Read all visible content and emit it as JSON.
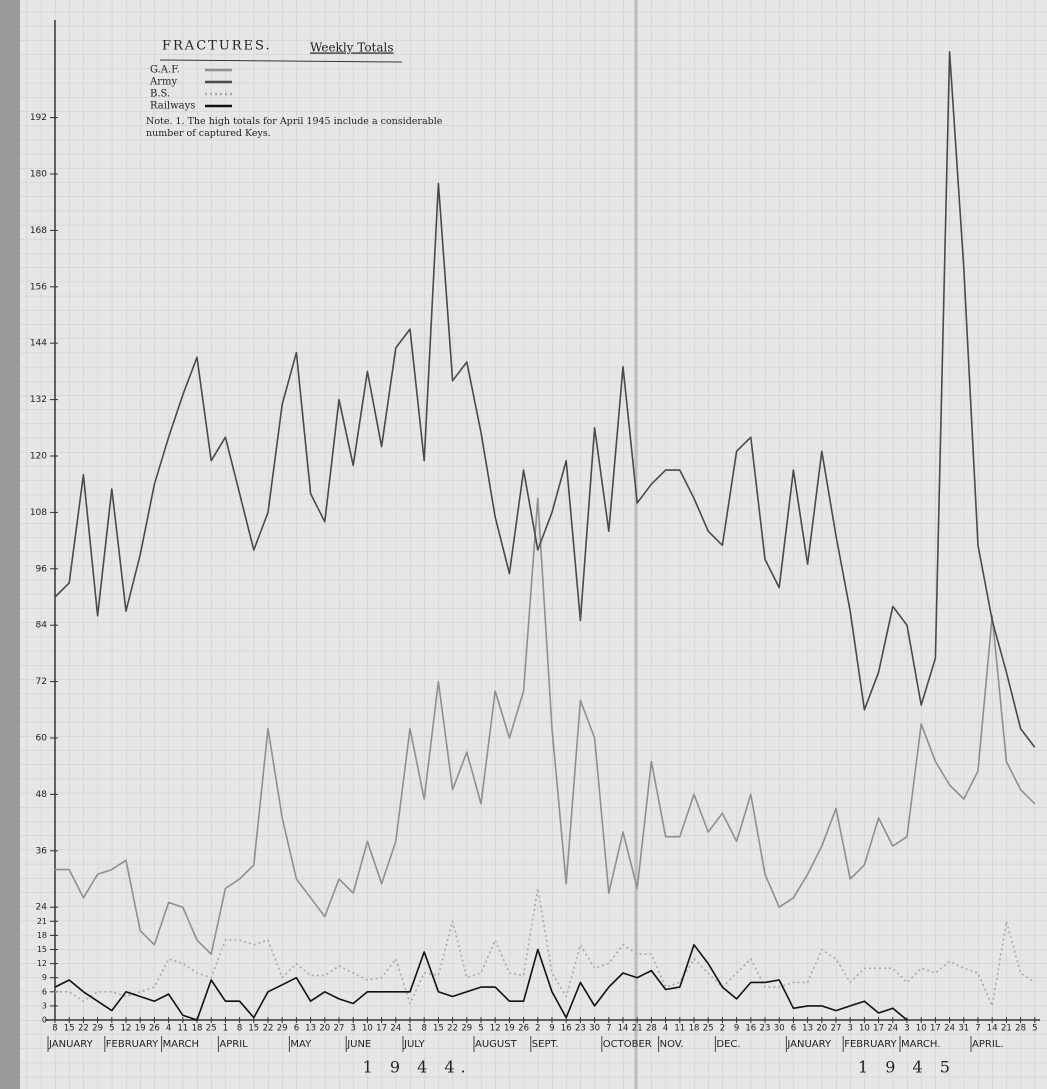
{
  "chart_data": {
    "type": "line",
    "title": "FRACTURES.",
    "subtitle": "Weekly Totals",
    "note": "Note. 1. The high totals for April 1945 include a considerable number of captured Keys.",
    "categories": [
      "8",
      "15",
      "22",
      "29",
      "5",
      "12",
      "19",
      "26",
      "4",
      "11",
      "18",
      "25",
      "1",
      "8",
      "15",
      "22",
      "29",
      "6",
      "13",
      "20",
      "27",
      "3",
      "10",
      "17",
      "24",
      "1",
      "8",
      "15",
      "22",
      "29",
      "5",
      "12",
      "19",
      "26",
      "2",
      "9",
      "16",
      "23",
      "30",
      "7",
      "14",
      "21",
      "28",
      "4",
      "11",
      "18",
      "25",
      "2",
      "9",
      "16",
      "23",
      "30",
      "6",
      "13",
      "20",
      "27",
      "3",
      "10",
      "17",
      "24",
      "3",
      "10",
      "17",
      "24",
      "31",
      "7",
      "14",
      "21",
      "28",
      "5"
    ],
    "months": [
      "JANUARY",
      "FEBRUARY",
      "MARCH",
      "APRIL",
      "MAY",
      "JUNE",
      "JULY",
      "AUGUST",
      "SEPT.",
      "OCTOBER",
      "NOV.",
      "DEC.",
      "JANUARY",
      "FEBRUARY",
      "MARCH.",
      "APRIL."
    ],
    "years": [
      "1 9 4 4.",
      "1 9 4 5"
    ],
    "ylim": [
      0,
      210
    ],
    "yticks": [
      0,
      3,
      6,
      9,
      12,
      15,
      18,
      21,
      24,
      36,
      48,
      60,
      72,
      84,
      96,
      108,
      120,
      132,
      144,
      156,
      168,
      180,
      192
    ],
    "series": [
      {
        "name": "G.A.F.",
        "color": "#8f8f8f",
        "dashed": false,
        "values": [
          32,
          32,
          26,
          31,
          32,
          34,
          19,
          16,
          25,
          24,
          17,
          14,
          28,
          30,
          33,
          62,
          43,
          30,
          26,
          22,
          30,
          27,
          38,
          29,
          38,
          62,
          47,
          72,
          49,
          57,
          46,
          70,
          60,
          70,
          111,
          62,
          29,
          68,
          60,
          27,
          40,
          28,
          55,
          39,
          39,
          48,
          40,
          44,
          38,
          48,
          31,
          24,
          26,
          31,
          37,
          45,
          30,
          33,
          43,
          37,
          39,
          63,
          55,
          50,
          47,
          53,
          86,
          55,
          49,
          46
        ]
      },
      {
        "name": "Army",
        "color": "#4a4a4a",
        "dashed": false,
        "values": [
          90,
          93,
          116,
          86,
          113,
          87,
          99,
          114,
          124,
          133,
          141,
          119,
          124,
          112,
          100,
          108,
          131,
          142,
          112,
          106,
          132,
          118,
          138,
          122,
          143,
          147,
          119,
          178,
          136,
          140,
          125,
          107,
          95,
          117,
          100,
          108,
          119,
          85,
          126,
          104,
          139,
          110,
          114,
          117,
          117,
          111,
          104,
          101,
          121,
          124,
          98,
          92,
          117,
          97,
          121,
          103,
          87,
          66,
          74,
          88,
          84,
          67,
          77,
          206,
          160,
          101,
          85,
          74,
          62,
          58
        ]
      },
      {
        "name": "B.S.",
        "color": "#a8a8a8",
        "dashed": true,
        "values": [
          6,
          6,
          4,
          6,
          6,
          5,
          6,
          7,
          13,
          12,
          10,
          9,
          17,
          17,
          16,
          17,
          9,
          12,
          9.5,
          9.5,
          11.5,
          10,
          8.5,
          9,
          13,
          3.5,
          10,
          9.5,
          21,
          9,
          10,
          17,
          10,
          9.5,
          28,
          10,
          5,
          16,
          11,
          12,
          16,
          14,
          14,
          7,
          8,
          13,
          10,
          7,
          10,
          13,
          7,
          7,
          8,
          8,
          15,
          13,
          8,
          11,
          11,
          11,
          8,
          11,
          10,
          12.5,
          11,
          10,
          3,
          21,
          10,
          8
        ]
      },
      {
        "name": "Railways",
        "color": "#111111",
        "dashed": false,
        "values": [
          7,
          8.5,
          6,
          4,
          2,
          6,
          5,
          4,
          5.5,
          1,
          0,
          8.5,
          4,
          4,
          0.5,
          6,
          7.5,
          9,
          4,
          6,
          4.5,
          3.5,
          6,
          6,
          6,
          6,
          14.5,
          6,
          5,
          6,
          7,
          7,
          4,
          4,
          15,
          6,
          0.5,
          8,
          3,
          7,
          10,
          9,
          10.5,
          6.5,
          7,
          16,
          12,
          7,
          4.5,
          8,
          8,
          8.5,
          2.5,
          3,
          3,
          2,
          3,
          4,
          1.5,
          2.5,
          0,
          null,
          null,
          null,
          null,
          null,
          null,
          null,
          null,
          null
        ]
      }
    ]
  }
}
